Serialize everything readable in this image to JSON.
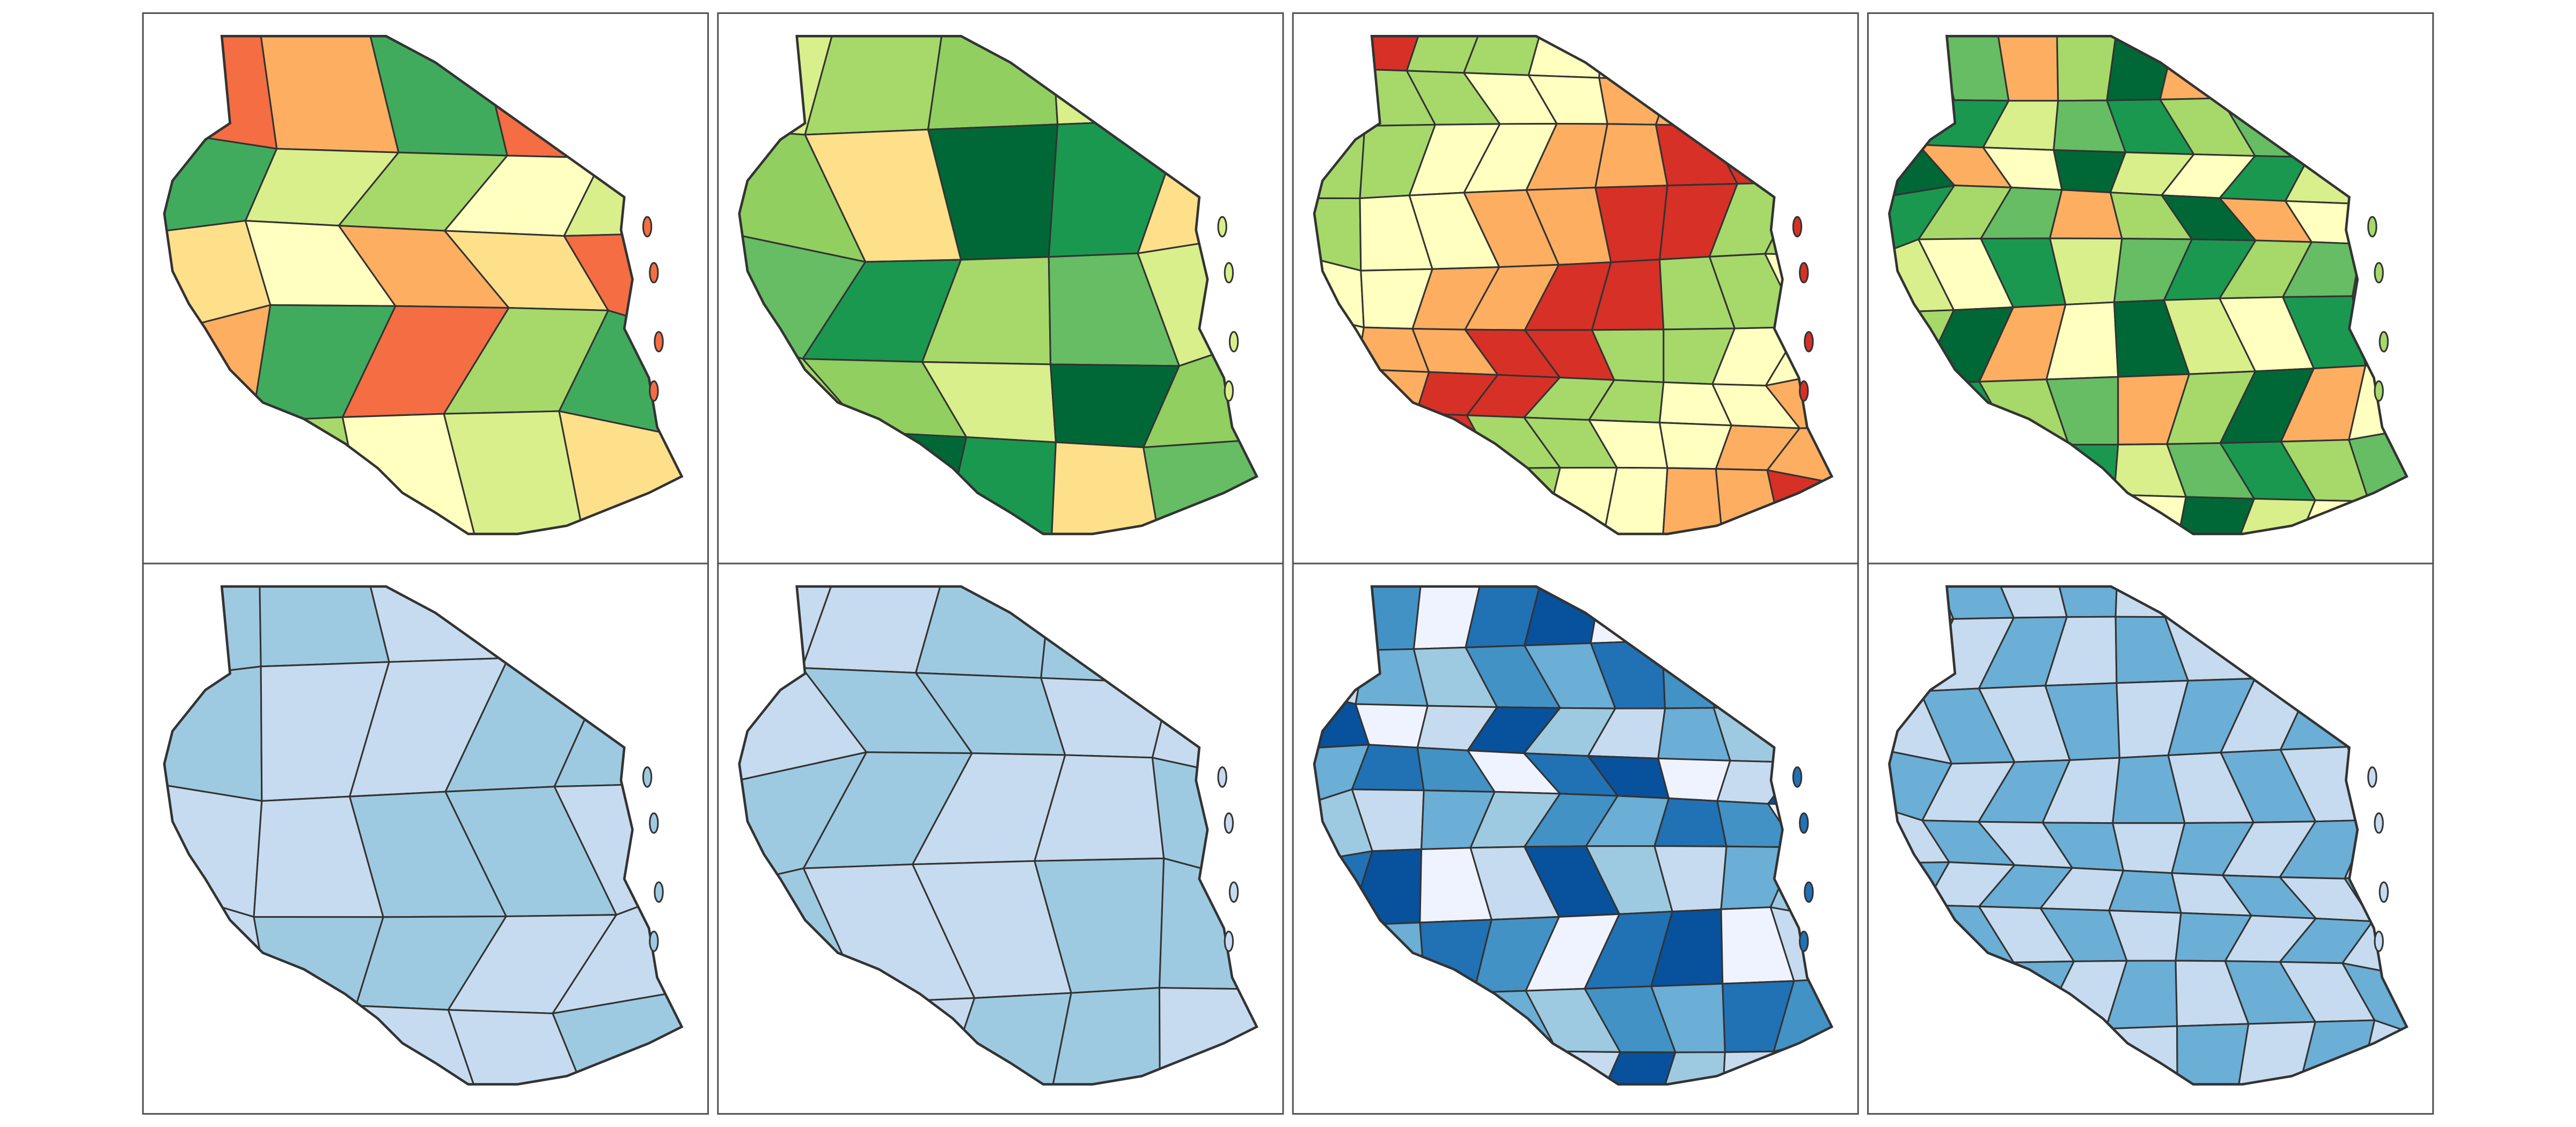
{
  "panels": [
    {
      "colors": [
        "#f46d43",
        "#fdae61",
        "#fee08b",
        "#ffffbf",
        "#d9ef8b",
        "#a6d96a",
        "#41ab5d"
      ]
    },
    {
      "colors": [
        "#d9ef8b",
        "#a6d96a",
        "#66bd63",
        "#1a9850",
        "#fee08b",
        "#006837",
        "#91cf60"
      ]
    },
    {
      "colors": [
        "#d73027",
        "#f46d43",
        "#fdae61",
        "#fee08b",
        "#ffffbf",
        "#d9ef8b",
        "#a6d96a",
        "#a50026"
      ]
    },
    {
      "colors": [
        "#a6d96a",
        "#66bd63",
        "#1a9850",
        "#d9ef8b",
        "#ffffbf",
        "#006837",
        "#fdae61"
      ]
    },
    {
      "colors": [
        "#9ecae1",
        "#b8d4ea",
        "#c6dbef",
        "#6baed6"
      ]
    },
    {
      "colors": [
        "#c6dbef",
        "#deebf7",
        "#9ecae1",
        "#6baed6"
      ]
    },
    {
      "colors": [
        "#2171b5",
        "#4292c6",
        "#6baed6",
        "#9ecae1",
        "#c6dbef",
        "#08519c",
        "#eff3ff"
      ]
    },
    {
      "colors": [
        "#c6dbef",
        "#9ecae1",
        "#6baed6",
        "#deebf7",
        "#2171b5",
        "#4292c6"
      ]
    }
  ]
}
